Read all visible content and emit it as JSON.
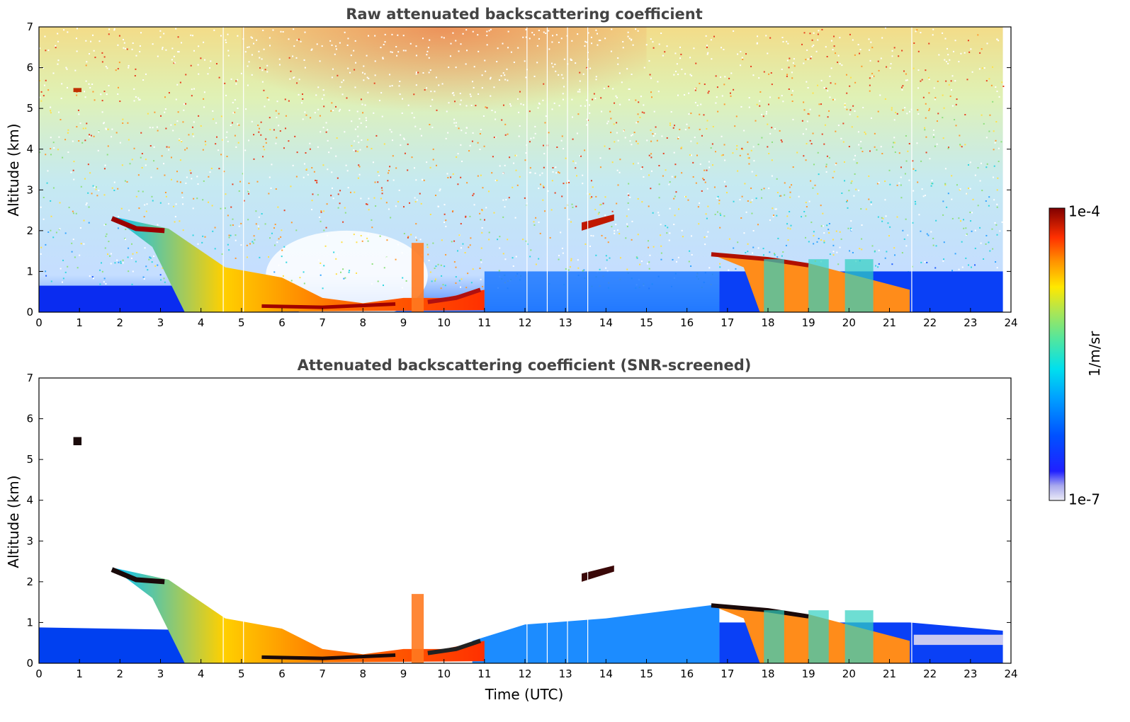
{
  "chart_data": [
    {
      "type": "heatmap",
      "title": "Raw attenuated backscattering coefficient",
      "xlabel": "",
      "ylabel": "Altitude (km)",
      "xlim": [
        0,
        24
      ],
      "ylim": [
        0,
        7
      ],
      "xticks": [
        "0",
        "1",
        "2",
        "3",
        "4",
        "5",
        "6",
        "7",
        "8",
        "9",
        "10",
        "11",
        "12",
        "13",
        "14",
        "15",
        "16",
        "17",
        "18",
        "19",
        "20",
        "21",
        "22",
        "23",
        "24"
      ],
      "yticks": [
        "0",
        "1",
        "2",
        "3",
        "4",
        "5",
        "6",
        "7"
      ],
      "features": [
        {
          "name": "boundary layer",
          "time": [
            0,
            23.8
          ],
          "altitude": [
            0,
            0.65
          ]
        },
        {
          "name": "descending aerosol layer",
          "time": [
            1.8,
            11
          ],
          "altitude_top": [
            2.3,
            0.2
          ]
        },
        {
          "name": "cloud 13.5h",
          "time": [
            13.4,
            14.2
          ],
          "altitude": [
            2.0,
            2.4
          ]
        },
        {
          "name": "cloud 0.9h",
          "time": [
            0.85,
            1.05
          ],
          "altitude": [
            5.4,
            5.5
          ]
        },
        {
          "name": "cloud layer 17-21h",
          "time": [
            16.6,
            21.5
          ],
          "altitude": [
            0,
            1.5
          ]
        }
      ]
    },
    {
      "type": "heatmap",
      "title": "Attenuated backscattering coefficient (SNR-screened)",
      "xlabel": "Time (UTC)",
      "ylabel": "Altitude (km)",
      "xlim": [
        0,
        24
      ],
      "ylim": [
        0,
        7
      ],
      "xticks": [
        "0",
        "1",
        "2",
        "3",
        "4",
        "5",
        "6",
        "7",
        "8",
        "9",
        "10",
        "11",
        "12",
        "13",
        "14",
        "15",
        "16",
        "17",
        "18",
        "19",
        "20",
        "21",
        "22",
        "23",
        "24"
      ],
      "yticks": [
        "0",
        "1",
        "2",
        "3",
        "4",
        "5",
        "6",
        "7"
      ],
      "features": [
        {
          "name": "boundary layer",
          "time": [
            0,
            23.8
          ],
          "altitude": [
            0,
            1.4
          ]
        },
        {
          "name": "descending aerosol layer",
          "time": [
            1.8,
            11
          ],
          "altitude_top": [
            2.35,
            0.2
          ]
        },
        {
          "name": "cloud 13.5h",
          "time": [
            13.4,
            14.2
          ],
          "altitude": [
            2.0,
            2.4
          ]
        },
        {
          "name": "cloud 0.9h",
          "time": [
            0.85,
            1.05
          ],
          "altitude": [
            5.35,
            5.55
          ]
        },
        {
          "name": "cloud layer 17-21h",
          "time": [
            16.6,
            21.5
          ],
          "altitude": [
            0,
            1.5
          ]
        }
      ]
    }
  ],
  "colorbar": {
    "max_label": "1e-4",
    "min_label": "1e-7",
    "unit": "1/m/sr",
    "scale": "log",
    "colors": [
      "#ececf6",
      "#c9c9f0",
      "#a9a9ee",
      "#7f7ff0",
      "#0000ff",
      "#0040ff",
      "#0080ff",
      "#00bfff",
      "#00e5ee",
      "#2ee8a0",
      "#7fe07f",
      "#bfe64a",
      "#ffee00",
      "#ffb000",
      "#ff6600",
      "#ee2200",
      "#b00000",
      "#800000"
    ]
  }
}
